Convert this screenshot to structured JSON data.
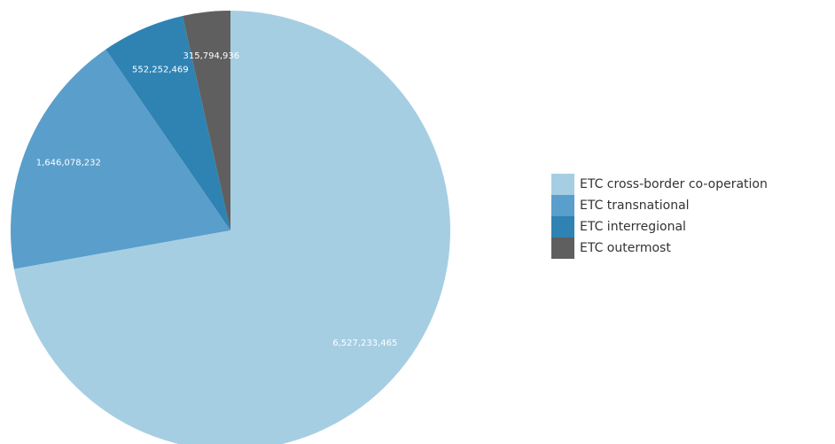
{
  "chart_data": {
    "type": "pie",
    "categories": [
      "ETC cross-border co-operation",
      "ETC transnational",
      "ETC interregional",
      "ETC outermost"
    ],
    "values": [
      6527233465,
      1646078232,
      552252469,
      315794936
    ],
    "value_labels": [
      "6,527,233,465",
      "1,646,078,232",
      "552,252,469",
      "315,794,936"
    ],
    "colors": [
      "#a6cee3",
      "#5a9ecb",
      "#2e83b3",
      "#5f5f5f"
    ],
    "legend": "right"
  }
}
